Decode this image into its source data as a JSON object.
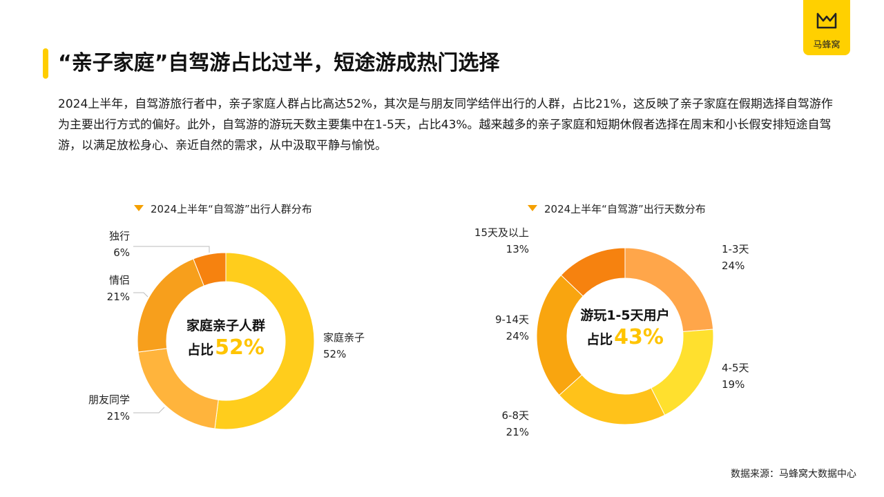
{
  "header": {
    "title": "“亲子家庭”自驾游占比过半，短途游成热门选择",
    "logo_text": "马蜂窝"
  },
  "description": "2024上半年，自驾游旅行者中，亲子家庭人群占比高达52%，其次是与朋友同学结伴出行的人群，占比21%，这反映了亲子家庭在假期选择自驾游作为主要出行方式的偏好。此外，自驾游的游玩天数主要集中在1-5天，占比43%。越来越多的亲子家庭和短期休假者选择在周末和小长假安排短途自驾游，以满足放松身心、亲近自然的需求，从中汲取平静与愉悦。",
  "footer": {
    "source": "数据来源：马蜂窝大数据中心"
  },
  "chart_data": [
    {
      "type": "pie",
      "title": "2024上半年“自驾游”出行人群分布",
      "center": {
        "line1": "家庭亲子人群",
        "prefix": "占比",
        "value": "52%"
      },
      "slices": [
        {
          "label": "家庭亲子",
          "value": 52,
          "pct": "52%",
          "color": "#ffcd1c"
        },
        {
          "label": "朋友同学",
          "value": 21,
          "pct": "21%",
          "color": "#ffb43c"
        },
        {
          "label": "情侣",
          "value": 21,
          "pct": "21%",
          "color": "#f79f1c"
        },
        {
          "label": "独行",
          "value": 6,
          "pct": "6%",
          "color": "#f6820f"
        }
      ]
    },
    {
      "type": "pie",
      "title": "2024上半年“自驾游”出行天数分布",
      "center": {
        "line1": "游玩1-5天用户",
        "prefix": "占比",
        "value": "43%"
      },
      "slices": [
        {
          "label": "1-3天",
          "value": 24,
          "pct": "24%",
          "color": "#ffa64a"
        },
        {
          "label": "4-5天",
          "value": 19,
          "pct": "19%",
          "color": "#ffe02e"
        },
        {
          "label": "6-8天",
          "value": 21,
          "pct": "21%",
          "color": "#ffc21a"
        },
        {
          "label": "9-14天",
          "value": 24,
          "pct": "24%",
          "color": "#f9a50f"
        },
        {
          "label": "15天及以上",
          "value": 13,
          "pct": "13%",
          "color": "#f6820f"
        }
      ]
    }
  ]
}
